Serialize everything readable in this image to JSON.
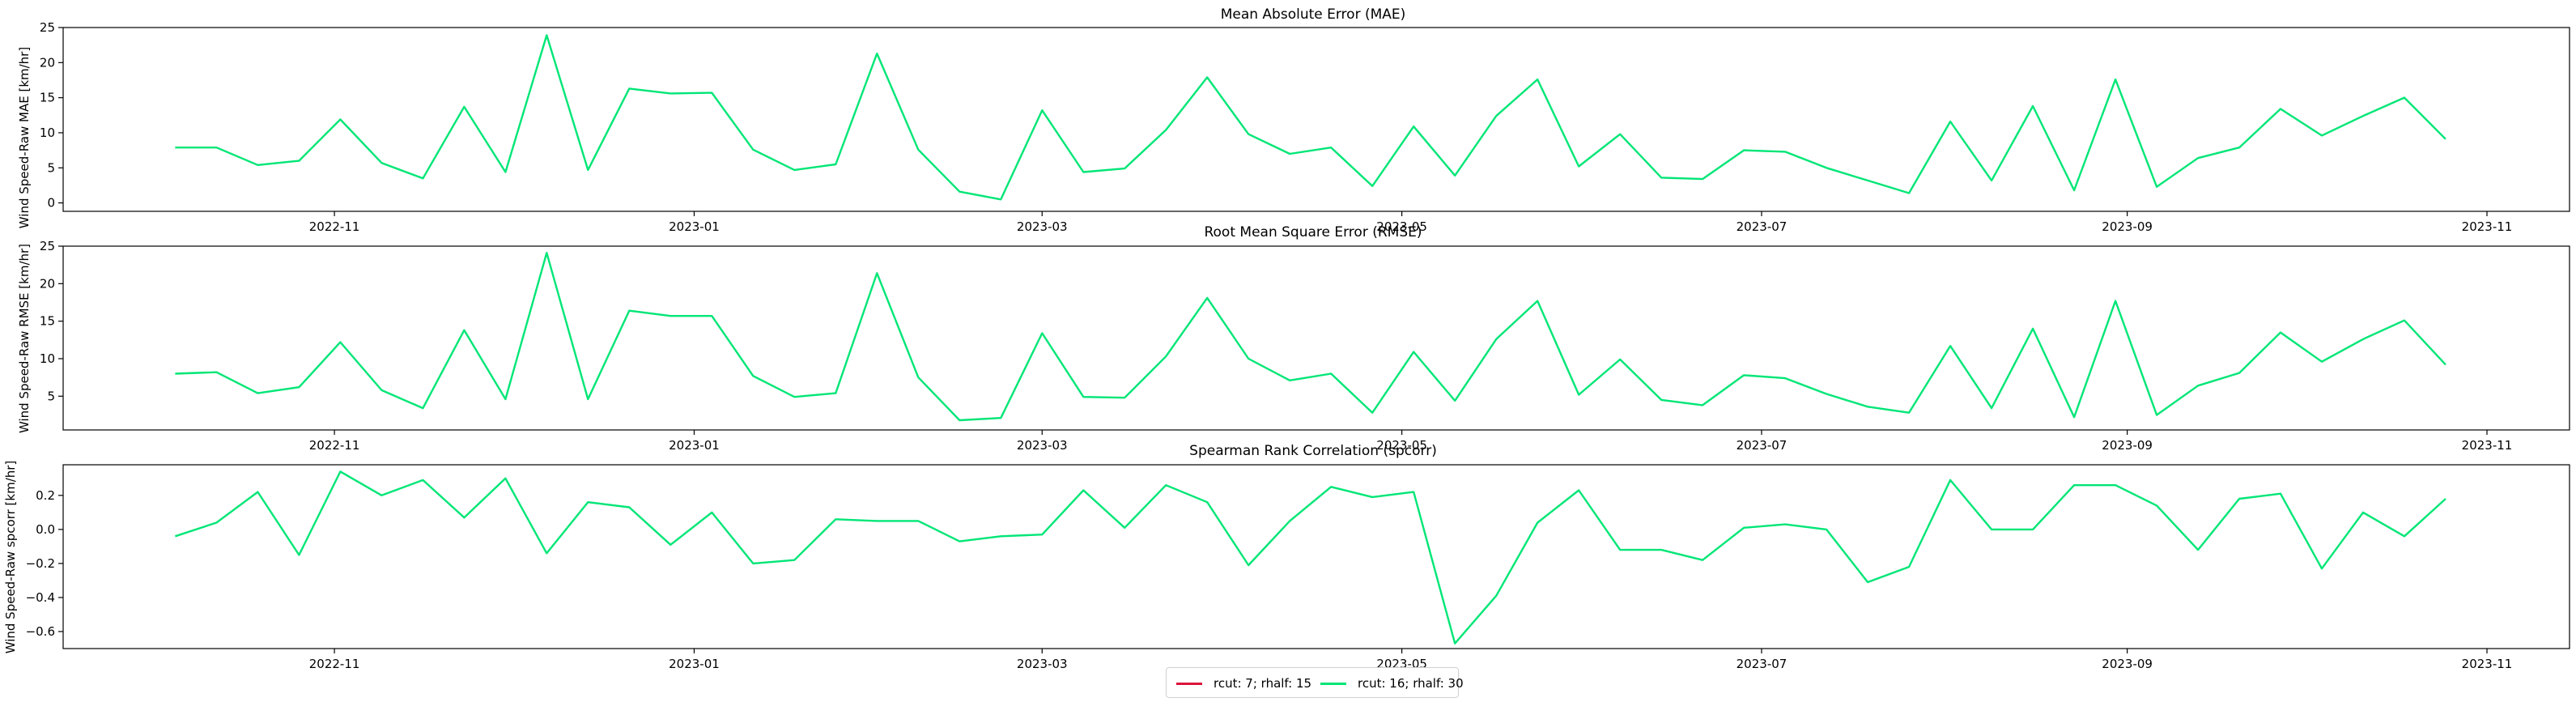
{
  "colors": {
    "series_a": "#dc143c",
    "series_b": "#00e676",
    "axes": "#000000"
  },
  "x_ticks": [
    "2022-11",
    "2023-01",
    "2023-03",
    "2023-05",
    "2023-07",
    "2023-09",
    "2023-11"
  ],
  "x_tick_dates": [
    "2022-11-01",
    "2023-01-01",
    "2023-03-01",
    "2023-05-01",
    "2023-07-01",
    "2023-09-01",
    "2023-11-01"
  ],
  "x_range": [
    "2022-09-16",
    "2023-11-15"
  ],
  "legend": {
    "position": "bottom-center",
    "items": [
      {
        "label": "rcut: 7; rhalf: 15",
        "color": "#dc143c"
      },
      {
        "label": "rcut: 16; rhalf: 30",
        "color": "#00e676"
      }
    ]
  },
  "chart_data": [
    {
      "type": "line",
      "title": "Mean Absolute Error (MAE)",
      "ylabel": "Wind Speed-Raw MAE [km/hr]",
      "ylim": [
        -1.2,
        25
      ],
      "yticks": [
        "0",
        "5",
        "10",
        "15",
        "20",
        "25"
      ],
      "ytick_values": [
        0,
        5,
        10,
        15,
        20,
        25
      ],
      "x": [
        "2022-10-05",
        "2022-10-12",
        "2022-10-19",
        "2022-10-26",
        "2022-11-02",
        "2022-11-09",
        "2022-11-16",
        "2022-11-23",
        "2022-11-30",
        "2022-12-07",
        "2022-12-14",
        "2022-12-21",
        "2022-12-28",
        "2023-01-04",
        "2023-01-11",
        "2023-01-18",
        "2023-01-25",
        "2023-02-01",
        "2023-02-08",
        "2023-02-15",
        "2023-02-22",
        "2023-03-01",
        "2023-03-08",
        "2023-03-15",
        "2023-03-22",
        "2023-03-29",
        "2023-04-05",
        "2023-04-12",
        "2023-04-19",
        "2023-04-26",
        "2023-05-03",
        "2023-05-10",
        "2023-05-17",
        "2023-05-24",
        "2023-05-31",
        "2023-06-07",
        "2023-06-14",
        "2023-06-21",
        "2023-06-28",
        "2023-07-05",
        "2023-07-12",
        "2023-07-19",
        "2023-07-26",
        "2023-08-02",
        "2023-08-09",
        "2023-08-16",
        "2023-08-23",
        "2023-08-30",
        "2023-09-06",
        "2023-09-13",
        "2023-09-20",
        "2023-09-27",
        "2023-10-04",
        "2023-10-11",
        "2023-10-18",
        "2023-10-25"
      ],
      "series": [
        {
          "name": "rcut: 16; rhalf: 30",
          "color": "#00e676",
          "values": [
            7.9,
            7.9,
            5.4,
            6.0,
            11.9,
            5.7,
            3.5,
            13.7,
            4.4,
            23.9,
            4.7,
            16.3,
            15.6,
            15.7,
            7.6,
            4.7,
            5.5,
            21.3,
            7.6,
            1.6,
            0.5,
            13.2,
            4.4,
            4.9,
            10.4,
            17.9,
            9.8,
            7.0,
            7.9,
            2.4,
            10.9,
            3.9,
            12.4,
            17.6,
            5.2,
            9.8,
            3.6,
            3.4,
            7.5,
            7.3,
            5.0,
            3.2,
            1.4,
            11.6,
            3.2,
            13.8,
            1.8,
            17.6,
            2.3,
            6.4,
            7.9,
            13.4,
            9.6,
            12.4,
            15.0,
            9.1
          ]
        }
      ]
    },
    {
      "type": "line",
      "title": "Root Mean Square Error (RMSE)",
      "ylabel": "Wind Speed-Raw RMSE [km/hr]",
      "ylim": [
        0.5,
        25
      ],
      "yticks": [
        "5",
        "10",
        "15",
        "20",
        "25"
      ],
      "ytick_values": [
        5,
        10,
        15,
        20,
        25
      ],
      "x": [
        "2022-10-05",
        "2022-10-12",
        "2022-10-19",
        "2022-10-26",
        "2022-11-02",
        "2022-11-09",
        "2022-11-16",
        "2022-11-23",
        "2022-11-30",
        "2022-12-07",
        "2022-12-14",
        "2022-12-21",
        "2022-12-28",
        "2023-01-04",
        "2023-01-11",
        "2023-01-18",
        "2023-01-25",
        "2023-02-01",
        "2023-02-08",
        "2023-02-15",
        "2023-02-22",
        "2023-03-01",
        "2023-03-08",
        "2023-03-15",
        "2023-03-22",
        "2023-03-29",
        "2023-04-05",
        "2023-04-12",
        "2023-04-19",
        "2023-04-26",
        "2023-05-03",
        "2023-05-10",
        "2023-05-17",
        "2023-05-24",
        "2023-05-31",
        "2023-06-07",
        "2023-06-14",
        "2023-06-21",
        "2023-06-28",
        "2023-07-05",
        "2023-07-12",
        "2023-07-19",
        "2023-07-26",
        "2023-08-02",
        "2023-08-09",
        "2023-08-16",
        "2023-08-23",
        "2023-08-30",
        "2023-09-06",
        "2023-09-13",
        "2023-09-20",
        "2023-09-27",
        "2023-10-04",
        "2023-10-11",
        "2023-10-18",
        "2023-10-25"
      ],
      "series": [
        {
          "name": "rcut: 16; rhalf: 30",
          "color": "#00e676",
          "values": [
            8.0,
            8.2,
            5.4,
            6.2,
            12.2,
            5.8,
            3.4,
            13.8,
            4.6,
            24.1,
            4.6,
            16.4,
            15.7,
            15.7,
            7.7,
            4.9,
            5.4,
            21.4,
            7.5,
            1.8,
            2.1,
            13.4,
            4.9,
            4.8,
            10.3,
            18.1,
            10.0,
            7.1,
            8.0,
            2.8,
            10.9,
            4.4,
            12.6,
            17.7,
            5.2,
            9.9,
            4.5,
            3.8,
            7.8,
            7.4,
            5.3,
            3.6,
            2.8,
            11.7,
            3.4,
            14.0,
            2.2,
            17.7,
            2.5,
            6.4,
            8.1,
            13.5,
            9.6,
            12.6,
            15.1,
            9.2
          ]
        }
      ]
    },
    {
      "type": "line",
      "title": "Spearman Rank Correlation (spcorr)",
      "ylabel": "Wind Speed-Raw spcorr [km/hr]",
      "ylim": [
        -0.7,
        0.38
      ],
      "yticks": [
        "−0.6",
        "−0.4",
        "−0.2",
        "0.0",
        "0.2"
      ],
      "ytick_values": [
        -0.6,
        -0.4,
        -0.2,
        0.0,
        0.2
      ],
      "x": [
        "2022-10-05",
        "2022-10-12",
        "2022-10-19",
        "2022-10-26",
        "2022-11-02",
        "2022-11-09",
        "2022-11-16",
        "2022-11-23",
        "2022-11-30",
        "2022-12-07",
        "2022-12-14",
        "2022-12-21",
        "2022-12-28",
        "2023-01-04",
        "2023-01-11",
        "2023-01-18",
        "2023-01-25",
        "2023-02-01",
        "2023-02-08",
        "2023-02-15",
        "2023-02-22",
        "2023-03-01",
        "2023-03-08",
        "2023-03-15",
        "2023-03-22",
        "2023-03-29",
        "2023-04-05",
        "2023-04-12",
        "2023-04-19",
        "2023-04-26",
        "2023-05-03",
        "2023-05-10",
        "2023-05-17",
        "2023-05-24",
        "2023-05-31",
        "2023-06-07",
        "2023-06-14",
        "2023-06-21",
        "2023-06-28",
        "2023-07-05",
        "2023-07-12",
        "2023-07-19",
        "2023-07-26",
        "2023-08-02",
        "2023-08-09",
        "2023-08-16",
        "2023-08-23",
        "2023-08-30",
        "2023-09-06",
        "2023-09-13",
        "2023-09-20",
        "2023-09-27",
        "2023-10-04",
        "2023-10-11",
        "2023-10-18",
        "2023-10-25"
      ],
      "series": [
        {
          "name": "rcut: 16; rhalf: 30",
          "color": "#00e676",
          "values": [
            -0.04,
            0.04,
            0.22,
            -0.15,
            0.34,
            0.2,
            0.29,
            0.07,
            0.3,
            -0.14,
            0.16,
            0.13,
            -0.09,
            0.1,
            -0.2,
            -0.18,
            0.06,
            0.05,
            0.05,
            -0.07,
            -0.04,
            -0.03,
            0.23,
            0.01,
            0.26,
            0.16,
            -0.21,
            0.05,
            0.25,
            0.19,
            0.22,
            -0.67,
            -0.39,
            0.04,
            0.23,
            -0.12,
            -0.12,
            -0.18,
            0.01,
            0.03,
            0.0,
            -0.31,
            -0.22,
            0.29,
            0.0,
            0.0,
            0.26,
            0.26,
            0.14,
            -0.12,
            0.18,
            0.21,
            -0.23,
            0.1,
            -0.04,
            0.18
          ]
        }
      ]
    }
  ]
}
